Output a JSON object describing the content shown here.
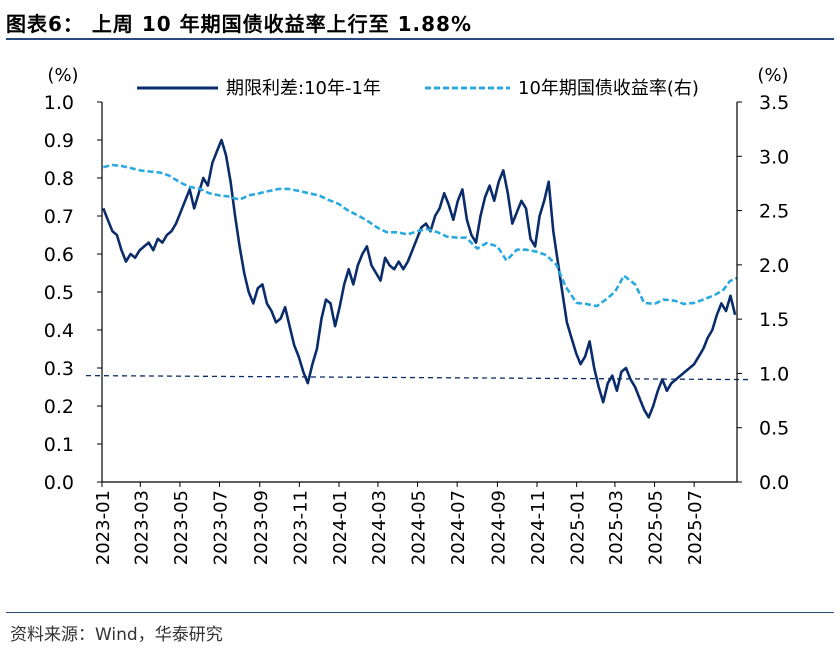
{
  "figure": {
    "title": "图表6： 上周 10 年期国债收益率上行至 1.88%",
    "source": "资料来源：Wind，华泰研究"
  },
  "chart_data": {
    "type": "line",
    "left_unit": "(%)",
    "right_unit": "(%)",
    "left_ylim": [
      0,
      1.0
    ],
    "left_ticks": [
      "0.0",
      "0.1",
      "0.2",
      "0.3",
      "0.4",
      "0.5",
      "0.6",
      "0.7",
      "0.8",
      "0.9",
      "1.0"
    ],
    "right_ylim": [
      0,
      3.5
    ],
    "right_ticks": [
      "0.0",
      "0.5",
      "1.0",
      "1.5",
      "2.0",
      "2.5",
      "3.0",
      "3.5"
    ],
    "x_range": [
      "2023-01-01",
      "2025-09-05"
    ],
    "x_ticks": [
      "2023-01",
      "2023-03",
      "2023-05",
      "2023-07",
      "2023-09",
      "2023-11",
      "2024-01",
      "2024-03",
      "2024-05",
      "2024-07",
      "2024-09",
      "2024-11",
      "2025-01",
      "2025-03",
      "2025-05",
      "2025-07"
    ],
    "reference_line": 0.28,
    "series": [
      {
        "name": "期限利差:10年-1年",
        "axis": "left",
        "color": "#0b2c6b",
        "style": "solid",
        "points": [
          [
            "2023-01-03",
            0.72
          ],
          [
            "2023-01-10",
            0.69
          ],
          [
            "2023-01-17",
            0.66
          ],
          [
            "2023-01-24",
            0.65
          ],
          [
            "2023-01-31",
            0.61
          ],
          [
            "2023-02-07",
            0.58
          ],
          [
            "2023-02-14",
            0.6
          ],
          [
            "2023-02-21",
            0.59
          ],
          [
            "2023-02-28",
            0.61
          ],
          [
            "2023-03-07",
            0.62
          ],
          [
            "2023-03-14",
            0.63
          ],
          [
            "2023-03-21",
            0.61
          ],
          [
            "2023-03-28",
            0.64
          ],
          [
            "2023-04-04",
            0.63
          ],
          [
            "2023-04-11",
            0.65
          ],
          [
            "2023-04-18",
            0.66
          ],
          [
            "2023-04-25",
            0.68
          ],
          [
            "2023-05-02",
            0.71
          ],
          [
            "2023-05-09",
            0.74
          ],
          [
            "2023-05-16",
            0.77
          ],
          [
            "2023-05-23",
            0.72
          ],
          [
            "2023-05-30",
            0.76
          ],
          [
            "2023-06-06",
            0.8
          ],
          [
            "2023-06-13",
            0.78
          ],
          [
            "2023-06-20",
            0.84
          ],
          [
            "2023-06-27",
            0.87
          ],
          [
            "2023-07-04",
            0.9
          ],
          [
            "2023-07-11",
            0.86
          ],
          [
            "2023-07-18",
            0.79
          ],
          [
            "2023-07-25",
            0.7
          ],
          [
            "2023-08-01",
            0.62
          ],
          [
            "2023-08-08",
            0.55
          ],
          [
            "2023-08-15",
            0.5
          ],
          [
            "2023-08-22",
            0.47
          ],
          [
            "2023-08-29",
            0.51
          ],
          [
            "2023-09-05",
            0.52
          ],
          [
            "2023-09-12",
            0.47
          ],
          [
            "2023-09-19",
            0.45
          ],
          [
            "2023-09-26",
            0.42
          ],
          [
            "2023-10-03",
            0.43
          ],
          [
            "2023-10-10",
            0.46
          ],
          [
            "2023-10-17",
            0.41
          ],
          [
            "2023-10-24",
            0.36
          ],
          [
            "2023-10-31",
            0.33
          ],
          [
            "2023-11-07",
            0.29
          ],
          [
            "2023-11-14",
            0.26
          ],
          [
            "2023-11-21",
            0.31
          ],
          [
            "2023-11-28",
            0.35
          ],
          [
            "2023-12-05",
            0.43
          ],
          [
            "2023-12-12",
            0.48
          ],
          [
            "2023-12-19",
            0.47
          ],
          [
            "2023-12-26",
            0.41
          ],
          [
            "2024-01-02",
            0.46
          ],
          [
            "2024-01-09",
            0.52
          ],
          [
            "2024-01-16",
            0.56
          ],
          [
            "2024-01-23",
            0.52
          ],
          [
            "2024-01-30",
            0.57
          ],
          [
            "2024-02-06",
            0.6
          ],
          [
            "2024-02-13",
            0.62
          ],
          [
            "2024-02-20",
            0.57
          ],
          [
            "2024-02-27",
            0.55
          ],
          [
            "2024-03-05",
            0.53
          ],
          [
            "2024-03-12",
            0.59
          ],
          [
            "2024-03-19",
            0.57
          ],
          [
            "2024-03-26",
            0.56
          ],
          [
            "2024-04-02",
            0.58
          ],
          [
            "2024-04-09",
            0.56
          ],
          [
            "2024-04-16",
            0.58
          ],
          [
            "2024-04-23",
            0.61
          ],
          [
            "2024-04-30",
            0.64
          ],
          [
            "2024-05-07",
            0.67
          ],
          [
            "2024-05-14",
            0.68
          ],
          [
            "2024-05-21",
            0.66
          ],
          [
            "2024-05-28",
            0.7
          ],
          [
            "2024-06-04",
            0.72
          ],
          [
            "2024-06-11",
            0.76
          ],
          [
            "2024-06-18",
            0.73
          ],
          [
            "2024-06-25",
            0.69
          ],
          [
            "2024-07-02",
            0.74
          ],
          [
            "2024-07-09",
            0.77
          ],
          [
            "2024-07-16",
            0.69
          ],
          [
            "2024-07-23",
            0.65
          ],
          [
            "2024-07-30",
            0.63
          ],
          [
            "2024-08-06",
            0.7
          ],
          [
            "2024-08-13",
            0.75
          ],
          [
            "2024-08-20",
            0.78
          ],
          [
            "2024-08-27",
            0.74
          ],
          [
            "2024-09-03",
            0.79
          ],
          [
            "2024-09-10",
            0.82
          ],
          [
            "2024-09-17",
            0.76
          ],
          [
            "2024-09-24",
            0.68
          ],
          [
            "2024-10-01",
            0.71
          ],
          [
            "2024-10-08",
            0.74
          ],
          [
            "2024-10-15",
            0.72
          ],
          [
            "2024-10-22",
            0.64
          ],
          [
            "2024-10-29",
            0.62
          ],
          [
            "2024-11-05",
            0.7
          ],
          [
            "2024-11-12",
            0.74
          ],
          [
            "2024-11-19",
            0.79
          ],
          [
            "2024-11-26",
            0.66
          ],
          [
            "2024-12-03",
            0.58
          ],
          [
            "2024-12-10",
            0.5
          ],
          [
            "2024-12-17",
            0.42
          ],
          [
            "2024-12-24",
            0.38
          ],
          [
            "2024-12-31",
            0.34
          ],
          [
            "2025-01-07",
            0.31
          ],
          [
            "2025-01-14",
            0.33
          ],
          [
            "2025-01-21",
            0.37
          ],
          [
            "2025-01-28",
            0.3
          ],
          [
            "2025-02-04",
            0.25
          ],
          [
            "2025-02-11",
            0.21
          ],
          [
            "2025-02-18",
            0.26
          ],
          [
            "2025-02-25",
            0.28
          ],
          [
            "2025-03-04",
            0.24
          ],
          [
            "2025-03-11",
            0.29
          ],
          [
            "2025-03-18",
            0.3
          ],
          [
            "2025-03-25",
            0.27
          ],
          [
            "2025-04-01",
            0.25
          ],
          [
            "2025-04-08",
            0.22
          ],
          [
            "2025-04-15",
            0.19
          ],
          [
            "2025-04-22",
            0.17
          ],
          [
            "2025-04-29",
            0.2
          ],
          [
            "2025-05-06",
            0.24
          ],
          [
            "2025-05-13",
            0.27
          ],
          [
            "2025-05-20",
            0.24
          ],
          [
            "2025-05-27",
            0.26
          ],
          [
            "2025-06-03",
            0.27
          ],
          [
            "2025-06-10",
            0.28
          ],
          [
            "2025-06-17",
            0.29
          ],
          [
            "2025-06-24",
            0.3
          ],
          [
            "2025-07-01",
            0.31
          ],
          [
            "2025-07-08",
            0.33
          ],
          [
            "2025-07-15",
            0.35
          ],
          [
            "2025-07-22",
            0.38
          ],
          [
            "2025-07-29",
            0.4
          ],
          [
            "2025-08-05",
            0.44
          ],
          [
            "2025-08-12",
            0.47
          ],
          [
            "2025-08-19",
            0.45
          ],
          [
            "2025-08-26",
            0.49
          ],
          [
            "2025-09-02",
            0.44
          ]
        ]
      },
      {
        "name": "10年期国债收益率(右)",
        "axis": "right",
        "color": "#29a9e0",
        "style": "dashed",
        "points": [
          [
            "2023-01-03",
            2.9
          ],
          [
            "2023-01-17",
            2.92
          ],
          [
            "2023-02-01",
            2.91
          ],
          [
            "2023-02-15",
            2.89
          ],
          [
            "2023-03-01",
            2.87
          ],
          [
            "2023-03-15",
            2.86
          ],
          [
            "2023-04-01",
            2.85
          ],
          [
            "2023-04-15",
            2.82
          ],
          [
            "2023-05-01",
            2.76
          ],
          [
            "2023-05-15",
            2.72
          ],
          [
            "2023-06-01",
            2.7
          ],
          [
            "2023-06-15",
            2.66
          ],
          [
            "2023-07-01",
            2.64
          ],
          [
            "2023-07-15",
            2.63
          ],
          [
            "2023-08-01",
            2.6
          ],
          [
            "2023-08-15",
            2.64
          ],
          [
            "2023-09-01",
            2.66
          ],
          [
            "2023-09-15",
            2.68
          ],
          [
            "2023-10-01",
            2.7
          ],
          [
            "2023-10-15",
            2.7
          ],
          [
            "2023-11-01",
            2.68
          ],
          [
            "2023-11-15",
            2.66
          ],
          [
            "2023-12-01",
            2.64
          ],
          [
            "2023-12-15",
            2.6
          ],
          [
            "2024-01-01",
            2.56
          ],
          [
            "2024-01-15",
            2.5
          ],
          [
            "2024-02-01",
            2.45
          ],
          [
            "2024-02-15",
            2.4
          ],
          [
            "2024-03-01",
            2.34
          ],
          [
            "2024-03-15",
            2.3
          ],
          [
            "2024-04-01",
            2.3
          ],
          [
            "2024-04-15",
            2.28
          ],
          [
            "2024-05-01",
            2.31
          ],
          [
            "2024-05-15",
            2.33
          ],
          [
            "2024-06-01",
            2.3
          ],
          [
            "2024-06-15",
            2.26
          ],
          [
            "2024-07-01",
            2.25
          ],
          [
            "2024-07-15",
            2.25
          ],
          [
            "2024-08-01",
            2.15
          ],
          [
            "2024-08-15",
            2.2
          ],
          [
            "2024-09-01",
            2.17
          ],
          [
            "2024-09-15",
            2.04
          ],
          [
            "2024-10-01",
            2.14
          ],
          [
            "2024-10-15",
            2.14
          ],
          [
            "2024-11-01",
            2.12
          ],
          [
            "2024-11-15",
            2.09
          ],
          [
            "2024-12-01",
            2.0
          ],
          [
            "2024-12-15",
            1.8
          ],
          [
            "2025-01-01",
            1.65
          ],
          [
            "2025-01-15",
            1.64
          ],
          [
            "2025-02-01",
            1.62
          ],
          [
            "2025-02-15",
            1.68
          ],
          [
            "2025-03-01",
            1.75
          ],
          [
            "2025-03-15",
            1.9
          ],
          [
            "2025-04-01",
            1.82
          ],
          [
            "2025-04-15",
            1.65
          ],
          [
            "2025-05-01",
            1.64
          ],
          [
            "2025-05-15",
            1.68
          ],
          [
            "2025-06-01",
            1.67
          ],
          [
            "2025-06-15",
            1.64
          ],
          [
            "2025-07-01",
            1.65
          ],
          [
            "2025-07-15",
            1.68
          ],
          [
            "2025-08-01",
            1.72
          ],
          [
            "2025-08-15",
            1.77
          ],
          [
            "2025-08-25",
            1.85
          ],
          [
            "2025-09-05",
            1.88
          ]
        ]
      }
    ]
  }
}
